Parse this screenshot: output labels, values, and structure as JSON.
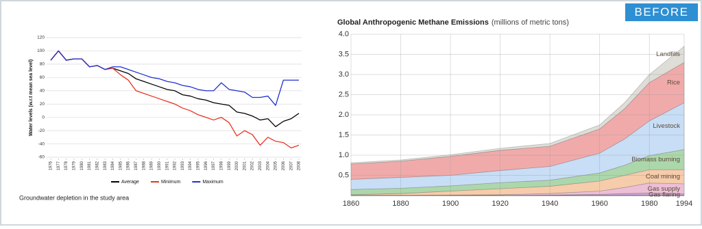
{
  "badge": "BEFORE",
  "chart_data": [
    {
      "type": "line",
      "ylabel": "Water levels (w.r.t mean sea level)",
      "caption": "Groundwater depletion in the study area",
      "x": [
        1976,
        1977,
        1978,
        1979,
        1980,
        1981,
        1982,
        1983,
        1984,
        1985,
        1986,
        1987,
        1988,
        1989,
        1990,
        1991,
        1992,
        1993,
        1994,
        1995,
        1996,
        1997,
        1998,
        1999,
        2000,
        2001,
        2002,
        2003,
        2004,
        2005,
        2006,
        2007,
        2008
      ],
      "xlim": [
        1976,
        2008
      ],
      "xticks": [
        1976,
        1977,
        1978,
        1979,
        1980,
        1981,
        1982,
        1983,
        1984,
        1985,
        1986,
        1987,
        1988,
        1989,
        1990,
        1991,
        1992,
        1993,
        1994,
        1995,
        1996,
        1997,
        1998,
        1999,
        2000,
        2001,
        2002,
        2003,
        2004,
        2005,
        2006,
        2007,
        2008
      ],
      "ylim": [
        -60,
        120
      ],
      "yticks": [
        -60,
        -40,
        -20,
        0,
        20,
        40,
        60,
        80,
        100,
        120
      ],
      "grid": true,
      "legend": "bottom",
      "series": [
        {
          "name": "Average",
          "color": "#000000",
          "values": [
            86,
            100,
            86,
            88,
            88,
            76,
            78,
            72,
            74,
            70,
            66,
            58,
            54,
            50,
            46,
            42,
            40,
            34,
            32,
            28,
            26,
            22,
            20,
            18,
            8,
            6,
            2,
            -4,
            -2,
            -14,
            -6,
            -2,
            6
          ]
        },
        {
          "name": "Minimum",
          "color": "#e8321e",
          "values": [
            86,
            100,
            86,
            88,
            88,
            76,
            78,
            72,
            74,
            64,
            56,
            40,
            36,
            32,
            28,
            24,
            20,
            14,
            10,
            4,
            0,
            -4,
            0,
            -8,
            -28,
            -20,
            -26,
            -42,
            -30,
            -36,
            -38,
            -46,
            -42
          ]
        },
        {
          "name": "Maximum",
          "color": "#1f2fd0",
          "values": [
            86,
            100,
            86,
            88,
            88,
            76,
            78,
            72,
            76,
            76,
            72,
            68,
            64,
            60,
            58,
            54,
            52,
            48,
            46,
            42,
            40,
            40,
            52,
            42,
            40,
            38,
            30,
            30,
            32,
            18,
            56,
            56,
            56
          ]
        }
      ]
    },
    {
      "type": "stacked-area",
      "title": "Global Anthropogenic Methane Emissions",
      "subtitle": "(millions of metric tons)",
      "x": [
        1860,
        1880,
        1900,
        1920,
        1940,
        1960,
        1970,
        1980,
        1994
      ],
      "xlim": [
        1860,
        1994
      ],
      "xticks": [
        1860,
        1880,
        1900,
        1920,
        1940,
        1960,
        1980,
        1994
      ],
      "ylim": [
        0,
        4
      ],
      "yticks": [
        0.5,
        {
          "value": 1,
          "label": "1.0"
        },
        1.5,
        {
          "value": 2,
          "label": "2.0"
        },
        2.5,
        {
          "value": 3,
          "label": "3.0"
        },
        3.5,
        {
          "value": 4,
          "label": "4.0"
        }
      ],
      "grid": true,
      "series": [
        {
          "name": "Gas flaring",
          "color": "#cfa6d6",
          "values": [
            0,
            0,
            0,
            0,
            0.01,
            0.03,
            0.05,
            0.06,
            0.04
          ]
        },
        {
          "name": "Gas supply",
          "color": "#ecbfd6",
          "values": [
            0,
            0,
            0.01,
            0.02,
            0.04,
            0.08,
            0.15,
            0.25,
            0.25
          ]
        },
        {
          "name": "Coal mining",
          "color": "#f7ccab",
          "values": [
            0.02,
            0.05,
            0.1,
            0.15,
            0.18,
            0.25,
            0.3,
            0.33,
            0.35
          ]
        },
        {
          "name": "Biomass burning",
          "color": "#acd7ab",
          "values": [
            0.13,
            0.13,
            0.13,
            0.15,
            0.15,
            0.2,
            0.25,
            0.35,
            0.5
          ]
        },
        {
          "name": "Livestock",
          "color": "#c8def6",
          "values": [
            0.25,
            0.27,
            0.26,
            0.3,
            0.34,
            0.49,
            0.65,
            0.86,
            1.16
          ]
        },
        {
          "name": "Rice",
          "color": "#f1aaaa",
          "values": [
            0.38,
            0.4,
            0.47,
            0.5,
            0.5,
            0.6,
            0.75,
            0.95,
            1.0
          ]
        },
        {
          "name": "Landfills",
          "color": "#deddd7",
          "values": [
            0.03,
            0.03,
            0.04,
            0.05,
            0.07,
            0.1,
            0.15,
            0.2,
            0.4
          ]
        }
      ]
    }
  ]
}
